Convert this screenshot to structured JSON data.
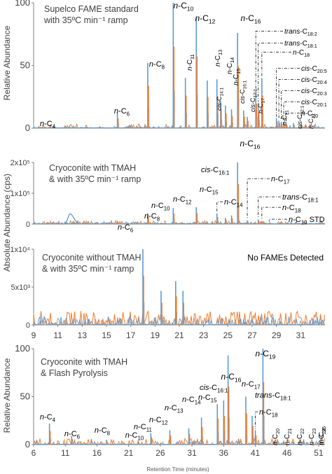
{
  "figure": {
    "ylabel_relative": "Relative Abundance",
    "ylabel_absolute": "Absolute Abundance (cps)",
    "xlabel": "Retention Time (minutes)"
  },
  "colors": {
    "blue": "#5b9bd5",
    "orange": "#ed7d31",
    "gray": "#a5a5a5",
    "axis": "#808080",
    "text": "#404040"
  },
  "chart_data": [
    {
      "type": "line",
      "title": "Supelco FAME standard\nwith 35ºC min⁻¹ ramp",
      "ylabel": "Relative Abundance",
      "yticks": [
        "0",
        "50",
        "100"
      ],
      "ylim": [
        0,
        100
      ],
      "xlim": [
        9,
        33
      ],
      "peaks": [
        {
          "x": 10.0,
          "y": 0.5,
          "label": "n-C4"
        },
        {
          "x": 15.9,
          "y": 12,
          "label": "n-C6"
        },
        {
          "x": 18.4,
          "y": 52,
          "label": "n-C8"
        },
        {
          "x": 20.5,
          "y": 100,
          "label": "n-C10"
        },
        {
          "x": 21.5,
          "y": 40,
          "label": "n-C11"
        },
        {
          "x": 22.4,
          "y": 88,
          "label": "n-C12"
        },
        {
          "x": 23.3,
          "y": 38,
          "label": "n-C13"
        },
        {
          "x": 24.1,
          "y": 39,
          "label": "n-C14"
        },
        {
          "x": 24.4,
          "y": 22,
          "label": "cis-C14:1"
        },
        {
          "x": 24.8,
          "y": 18,
          "label": "n-C15"
        },
        {
          "x": 25.3,
          "y": 15,
          "label": "cis-C16:1"
        },
        {
          "x": 25.8,
          "y": 76,
          "label": "n-C16"
        },
        {
          "x": 26.3,
          "y": 14,
          "label": "cis-C17:1"
        },
        {
          "x": 26.6,
          "y": 9,
          "label": "n-C17"
        },
        {
          "x": 27.3,
          "y": 30,
          "label": "trans-C18:2"
        },
        {
          "x": 27.5,
          "y": 20,
          "label": "trans-C18:1"
        },
        {
          "x": 27.8,
          "y": 40,
          "label": "n-C18"
        },
        {
          "x": 29.0,
          "y": 8,
          "label": "cis-C20:5"
        },
        {
          "x": 29.2,
          "y": 6,
          "label": "cis-C20:4"
        },
        {
          "x": 29.4,
          "y": 5,
          "label": "cis-C20:3"
        },
        {
          "x": 29.6,
          "y": 5,
          "label": "cis-C20:1"
        },
        {
          "x": 29.8,
          "y": 4,
          "label": "n-C20"
        },
        {
          "x": 30.4,
          "y": 4,
          "label": "n-C21"
        },
        {
          "x": 31.0,
          "y": 3,
          "label": "cis-C22:1"
        },
        {
          "x": 31.4,
          "y": 3,
          "label": "n-C22"
        }
      ],
      "labels": [
        {
          "label": "n-C4",
          "parts": [
            "n",
            "-C",
            "4"
          ]
        },
        {
          "label": "n-C6",
          "parts": [
            "n",
            "-C",
            "6"
          ]
        },
        {
          "label": "n-C8",
          "parts": [
            "n",
            "-C",
            "8"
          ]
        },
        {
          "label": "n-C10",
          "parts": [
            "n",
            "-C",
            "10"
          ]
        },
        {
          "label": "n-C11",
          "parts": [
            "n",
            "-C",
            "11"
          ]
        },
        {
          "label": "n-C12",
          "parts": [
            "n",
            "-C",
            "12"
          ]
        },
        {
          "label": "n-C13",
          "parts": [
            "n",
            "-C",
            "13"
          ]
        },
        {
          "label": "n-C14",
          "parts": [
            "n",
            "-C",
            "14"
          ]
        },
        {
          "label": "cis-C14:1",
          "parts": [
            "cis",
            "-C",
            "14:1"
          ]
        },
        {
          "label": "n-C15",
          "parts": [
            "n",
            "-C",
            "15"
          ]
        },
        {
          "label": "cis-C16:1",
          "parts": [
            "cis",
            "-C",
            "16:1"
          ]
        },
        {
          "label": "n-C16",
          "parts": [
            "n",
            "-C",
            "16"
          ]
        },
        {
          "label": "cis-C17:1",
          "parts": [
            "cis",
            "-C",
            "17:1"
          ]
        },
        {
          "label": "n-C17",
          "parts": [
            "n",
            "-C",
            "17"
          ]
        },
        {
          "label": "trans-C18:2",
          "parts": [
            "trans",
            "-C",
            "18:2"
          ]
        },
        {
          "label": "trans-C18:1",
          "parts": [
            "trans",
            "-C",
            "18:1"
          ]
        },
        {
          "label": "n-C18",
          "parts": [
            "n",
            "-C",
            "18"
          ]
        },
        {
          "label": "cis-C20:5",
          "parts": [
            "cis",
            "-C",
            "20:5"
          ]
        },
        {
          "label": "cis-C20:4",
          "parts": [
            "cis",
            "-C",
            "20:4"
          ]
        },
        {
          "label": "cis-C20:3",
          "parts": [
            "cis",
            "-C",
            "20:3"
          ]
        },
        {
          "label": "cis-C20:1",
          "parts": [
            "cis",
            "-C",
            "20:1"
          ]
        },
        {
          "label": "n-C20",
          "parts": [
            "n",
            "-C",
            "20"
          ]
        },
        {
          "label": "n-C21",
          "parts": [
            "n",
            "-C",
            "21"
          ]
        },
        {
          "label": "cis-C22:1",
          "parts": [
            "cis",
            "-C",
            "22:1"
          ]
        },
        {
          "label": "n-C22",
          "parts": [
            "n",
            "-C",
            "22"
          ]
        }
      ]
    },
    {
      "type": "line",
      "title": "Cryoconite with TMAH\n& with 35ºC min⁻¹ ramp",
      "ylabel": "Absolute Abundance (cps)",
      "yticks": [
        "0",
        "1x10⁵",
        "2x10⁵"
      ],
      "ylim": [
        0,
        200000
      ],
      "xlim": [
        9,
        33
      ],
      "peaks": [
        {
          "x": 12.0,
          "y": 33000,
          "label": ""
        },
        {
          "x": 15.9,
          "y": 10000,
          "label": "n-C6"
        },
        {
          "x": 18.4,
          "y": 35000,
          "label": "n-C8"
        },
        {
          "x": 20.5,
          "y": 52000,
          "label": "n-C10"
        },
        {
          "x": 22.4,
          "y": 55000,
          "label": "n-C12"
        },
        {
          "x": 24.1,
          "y": 35000,
          "label": "n-C14"
        },
        {
          "x": 24.8,
          "y": 20000,
          "label": "n-C15"
        },
        {
          "x": 25.3,
          "y": 28000,
          "label": "cis-C16:1"
        },
        {
          "x": 25.8,
          "y": 200000,
          "label": "n-C16"
        },
        {
          "x": 26.6,
          "y": 12000,
          "label": "n-C17"
        },
        {
          "x": 27.5,
          "y": 15000,
          "label": "trans-C18:1"
        },
        {
          "x": 27.8,
          "y": 10000,
          "label": "n-C18"
        },
        {
          "x": 28.4,
          "y": 3000,
          "label": "n-C19 STD"
        }
      ],
      "labels": [
        {
          "label": "n-C16",
          "parts": [
            "n",
            "-C",
            "16"
          ]
        },
        {
          "label": "cis-C16:1",
          "parts": [
            "cis",
            "-C",
            "16:1"
          ]
        },
        {
          "label": "n-C17",
          "parts": [
            "n",
            "-C",
            "17"
          ]
        },
        {
          "label": "n-C15",
          "parts": [
            "n",
            "-C",
            "15"
          ]
        },
        {
          "label": "n-C12",
          "parts": [
            "n",
            "-C",
            "12"
          ]
        },
        {
          "label": "n-C10",
          "parts": [
            "n",
            "-C",
            "10"
          ]
        },
        {
          "label": "trans-C18:1",
          "parts": [
            "trans",
            "-C",
            "18:1"
          ]
        },
        {
          "label": "n-C14",
          "parts": [
            "n",
            "-C",
            "14"
          ]
        },
        {
          "label": "n-C18",
          "parts": [
            "n",
            "-C",
            "18"
          ]
        },
        {
          "label": "n-C8",
          "parts": [
            "n",
            "-C",
            "8"
          ]
        },
        {
          "label": "n-C6",
          "parts": [
            "n",
            "-C",
            "6"
          ]
        },
        {
          "label": "n-C19 STD",
          "parts": [
            "n",
            "-C",
            "19",
            " STD"
          ]
        }
      ]
    },
    {
      "type": "line",
      "title": "Cryoconite without TMAH\n& with 35ºC min⁻¹ ramp",
      "note": "No FAMEs Detected",
      "ylabel": "",
      "yticks": [
        "0",
        "5x10³",
        "1x10⁴"
      ],
      "ylim": [
        0,
        10000
      ],
      "xlim": [
        9,
        33
      ],
      "xticks": [
        "9",
        "11",
        "13",
        "15",
        "17",
        "19",
        "21",
        "23",
        "25",
        "27",
        "29",
        "31"
      ],
      "peaks": [
        {
          "x": 18.0,
          "y": 10000,
          "label": ""
        },
        {
          "x": 19.5,
          "y": 4500,
          "label": ""
        },
        {
          "x": 20.7,
          "y": 5800,
          "label": ""
        },
        {
          "x": 21.3,
          "y": 4500,
          "label": ""
        }
      ],
      "labels": []
    },
    {
      "type": "line",
      "title": "Cryoconite with TMAH\n& Flash Pyrolysis",
      "ylabel": "Relative Abundance",
      "yticks": [
        "0",
        "50",
        "100"
      ],
      "ylim": [
        0,
        100
      ],
      "xlim": [
        6,
        52
      ],
      "xticks": [
        "6",
        "11",
        "16",
        "21",
        "26",
        "31",
        "36",
        "41",
        "46",
        "51"
      ],
      "peaks": [
        {
          "x": 8.5,
          "y": 22,
          "label": "n-C4"
        },
        {
          "x": 12.0,
          "y": 9,
          "label": "n-C6"
        },
        {
          "x": 17.5,
          "y": 5,
          "label": "n-C8"
        },
        {
          "x": 22.5,
          "y": 4,
          "label": "n-C10"
        },
        {
          "x": 24.5,
          "y": 12,
          "label": "n-C11"
        },
        {
          "x": 27.5,
          "y": 15,
          "label": "n-C12"
        },
        {
          "x": 30.5,
          "y": 17,
          "label": "n-C13"
        },
        {
          "x": 32.5,
          "y": 28,
          "label": "n-C14"
        },
        {
          "x": 35.0,
          "y": 42,
          "label": "n-C15"
        },
        {
          "x": 36.0,
          "y": 46,
          "label": "cis-C16:1"
        },
        {
          "x": 36.7,
          "y": 93,
          "label": "n-C16"
        },
        {
          "x": 39.5,
          "y": 50,
          "label": "n-C17"
        },
        {
          "x": 40.5,
          "y": 30,
          "label": "trans-C18:1"
        },
        {
          "x": 41.0,
          "y": 15,
          "label": "n-C18"
        },
        {
          "x": 42.2,
          "y": 100,
          "label": "n-C19"
        },
        {
          "x": 44.0,
          "y": 4,
          "label": "n-C20"
        },
        {
          "x": 45.5,
          "y": 3,
          "label": "n-C21"
        },
        {
          "x": 47.0,
          "y": 3,
          "label": "n-C22"
        },
        {
          "x": 48.5,
          "y": 3,
          "label": "n-C23"
        },
        {
          "x": 50.0,
          "y": 3,
          "label": "n-C24"
        },
        {
          "x": 51.5,
          "y": 3,
          "label": "n-C25"
        }
      ],
      "labels": [
        {
          "label": "n-C19",
          "parts": [
            "n",
            "-C",
            "19"
          ]
        },
        {
          "label": "n-C16",
          "parts": [
            "n",
            "-C",
            "16"
          ]
        },
        {
          "label": "cis-C16:1",
          "parts": [
            "cis",
            "-C",
            "16:1"
          ]
        },
        {
          "label": "n-C15",
          "parts": [
            "n",
            "-C",
            "15"
          ]
        },
        {
          "label": "n-C17",
          "parts": [
            "n",
            "-C",
            "17"
          ]
        },
        {
          "label": "n-C14",
          "parts": [
            "n",
            "-C",
            "14"
          ]
        },
        {
          "label": "trans-C18:1",
          "parts": [
            "trans",
            "-C",
            "18:1"
          ]
        },
        {
          "label": "n-C13",
          "parts": [
            "n",
            "-C",
            "13"
          ]
        },
        {
          "label": "n-C18",
          "parts": [
            "n",
            "-C",
            "18"
          ]
        },
        {
          "label": "n-C12",
          "parts": [
            "n",
            "-C",
            "12"
          ]
        },
        {
          "label": "n-C11",
          "parts": [
            "n",
            "-C",
            "11"
          ]
        },
        {
          "label": "n-C4",
          "parts": [
            "n",
            "-C",
            "4"
          ]
        },
        {
          "label": "n-C6",
          "parts": [
            "n",
            "-C",
            "6"
          ]
        },
        {
          "label": "n-C8",
          "parts": [
            "n",
            "-C",
            "8"
          ]
        },
        {
          "label": "n-C10",
          "parts": [
            "n",
            "-C",
            "10"
          ]
        },
        {
          "label": "n-C20",
          "parts": [
            "n",
            "-C",
            "20"
          ]
        },
        {
          "label": "n-C21",
          "parts": [
            "n",
            "-C",
            "21"
          ]
        },
        {
          "label": "n-C22",
          "parts": [
            "n",
            "-C",
            "22"
          ]
        },
        {
          "label": "n-C23",
          "parts": [
            "n",
            "-C",
            "23"
          ]
        },
        {
          "label": "n-C24",
          "parts": [
            "n",
            "-C",
            "24"
          ]
        },
        {
          "label": "n-C25",
          "parts": [
            "n",
            "-C",
            "25"
          ]
        }
      ]
    }
  ]
}
